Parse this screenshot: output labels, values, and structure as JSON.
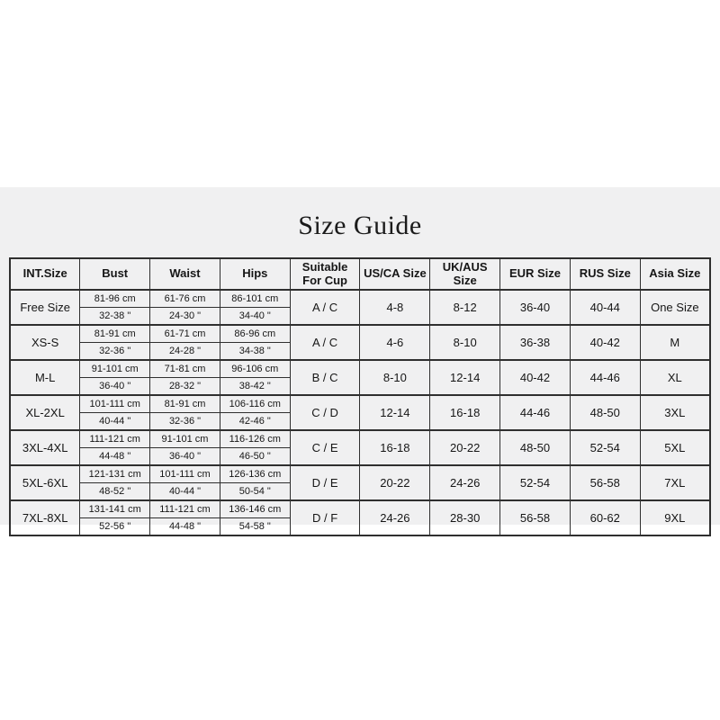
{
  "title": "Size Guide",
  "table": {
    "headers": [
      "INT.Size",
      "Bust",
      "Waist",
      "Hips",
      "Suitable For Cup",
      "US/CA Size",
      "UK/AUS Size",
      "EUR Size",
      "RUS Size",
      "Asia Size"
    ],
    "rows": [
      {
        "int_size": "Free Size",
        "bust_cm": "81-96 cm",
        "waist_cm": "61-76 cm",
        "hips_cm": "86-101 cm",
        "bust_in": "32-38 \"",
        "waist_in": "24-30 \"",
        "hips_in": "34-40 \"",
        "cup": "A / C",
        "us_ca": "4-8",
        "uk_aus": "8-12",
        "eur": "36-40",
        "rus": "40-44",
        "asia": "One Size"
      },
      {
        "int_size": "XS-S",
        "bust_cm": "81-91 cm",
        "waist_cm": "61-71 cm",
        "hips_cm": "86-96 cm",
        "bust_in": "32-36 \"",
        "waist_in": "24-28 \"",
        "hips_in": "34-38 \"",
        "cup": "A / C",
        "us_ca": "4-6",
        "uk_aus": "8-10",
        "eur": "36-38",
        "rus": "40-42",
        "asia": "M"
      },
      {
        "int_size": "M-L",
        "bust_cm": "91-101 cm",
        "waist_cm": "71-81 cm",
        "hips_cm": "96-106 cm",
        "bust_in": "36-40 \"",
        "waist_in": "28-32 \"",
        "hips_in": "38-42 \"",
        "cup": "B / C",
        "us_ca": "8-10",
        "uk_aus": "12-14",
        "eur": "40-42",
        "rus": "44-46",
        "asia": "XL"
      },
      {
        "int_size": "XL-2XL",
        "bust_cm": "101-111 cm",
        "waist_cm": "81-91 cm",
        "hips_cm": "106-116 cm",
        "bust_in": "40-44 \"",
        "waist_in": "32-36 \"",
        "hips_in": "42-46 \"",
        "cup": "C / D",
        "us_ca": "12-14",
        "uk_aus": "16-18",
        "eur": "44-46",
        "rus": "48-50",
        "asia": "3XL"
      },
      {
        "int_size": "3XL-4XL",
        "bust_cm": "111-121 cm",
        "waist_cm": "91-101 cm",
        "hips_cm": "116-126 cm",
        "bust_in": "44-48 \"",
        "waist_in": "36-40 \"",
        "hips_in": "46-50 \"",
        "cup": "C / E",
        "us_ca": "16-18",
        "uk_aus": "20-22",
        "eur": "48-50",
        "rus": "52-54",
        "asia": "5XL"
      },
      {
        "int_size": "5XL-6XL",
        "bust_cm": "121-131 cm",
        "waist_cm": "101-111 cm",
        "hips_cm": "126-136 cm",
        "bust_in": "48-52 \"",
        "waist_in": "40-44 \"",
        "hips_in": "50-54 \"",
        "cup": "D / E",
        "us_ca": "20-22",
        "uk_aus": "24-26",
        "eur": "52-54",
        "rus": "56-58",
        "asia": "7XL"
      },
      {
        "int_size": "7XL-8XL",
        "bust_cm": "131-141 cm",
        "waist_cm": "111-121 cm",
        "hips_cm": "136-146 cm",
        "bust_in": "52-56 \"",
        "waist_in": "44-48 \"",
        "hips_in": "54-58 \"",
        "cup": "D / F",
        "us_ca": "24-26",
        "uk_aus": "28-30",
        "eur": "56-58",
        "rus": "60-62",
        "asia": "9XL"
      }
    ]
  },
  "colors": {
    "panel_background": "#f0f0f1",
    "page_background": "#ffffff",
    "border": "#2f2f2f",
    "text": "#1a1a1a"
  }
}
